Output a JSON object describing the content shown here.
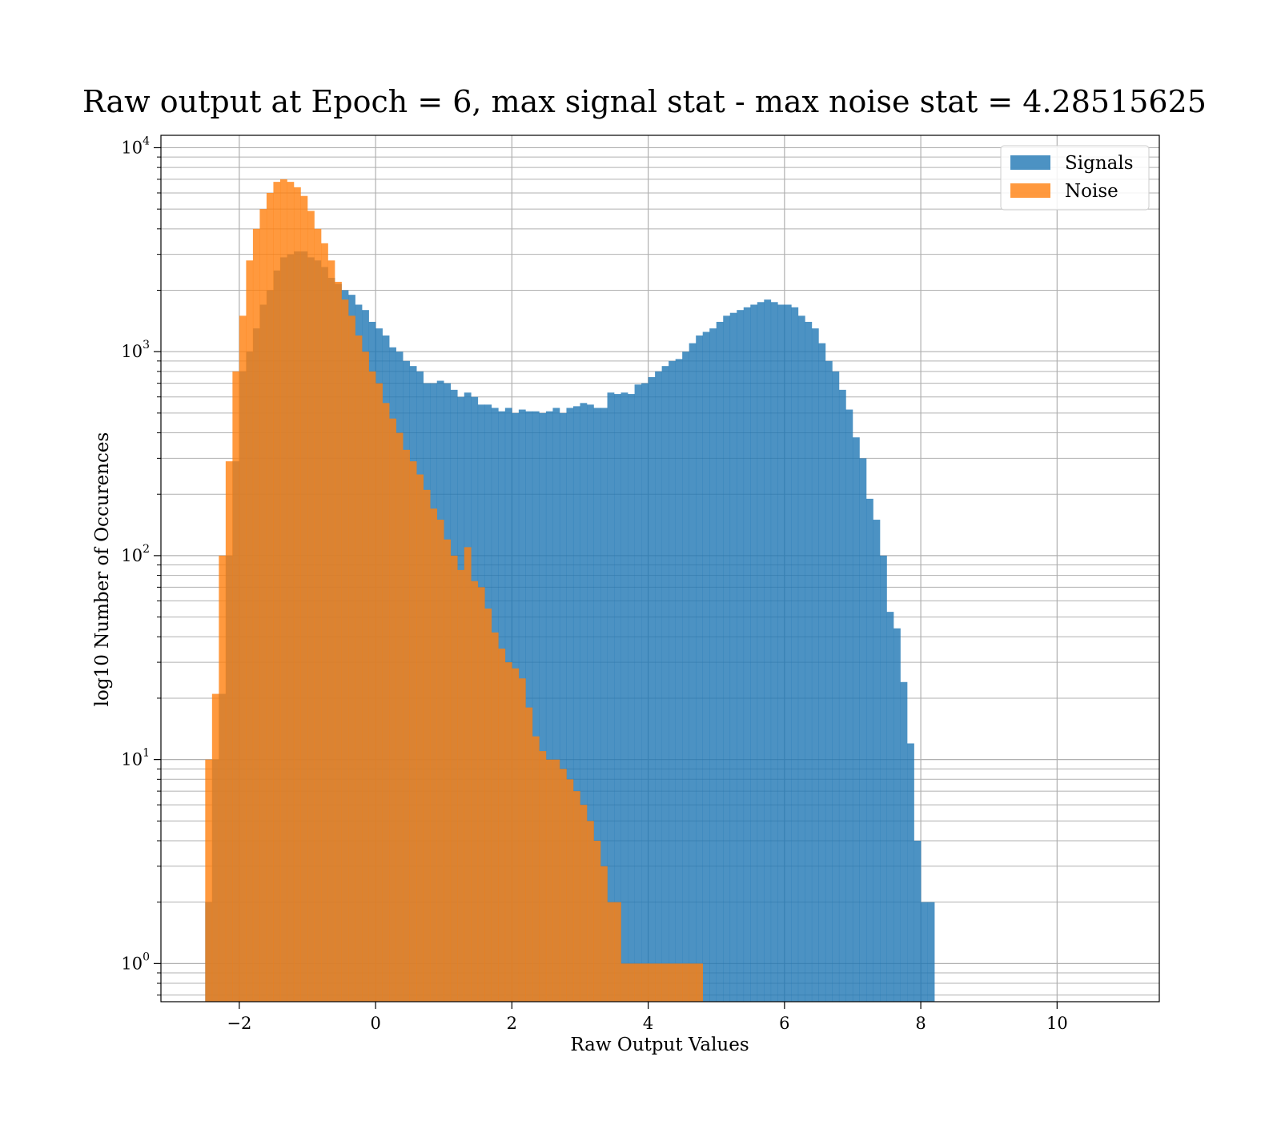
{
  "chart_data": {
    "type": "bar",
    "title": "Raw output at Epoch = 6, max signal stat - max noise stat = 4.28515625",
    "xlabel": "Raw Output Values",
    "ylabel": "log10 Number of Occurences",
    "x_scale": "linear",
    "y_scale": "log",
    "xlim": [
      -3.15,
      11.5
    ],
    "ylim": [
      0.65,
      11500
    ],
    "grid": true,
    "legend_position": "top-right",
    "x_ticks": [
      {
        "value": -2,
        "label": "−2"
      },
      {
        "value": 0,
        "label": "0"
      },
      {
        "value": 2,
        "label": "2"
      },
      {
        "value": 4,
        "label": "4"
      },
      {
        "value": 6,
        "label": "6"
      },
      {
        "value": 8,
        "label": "8"
      },
      {
        "value": 10,
        "label": "10"
      }
    ],
    "y_ticks": [
      {
        "value": 1,
        "base": "10",
        "exp": "0"
      },
      {
        "value": 10,
        "base": "10",
        "exp": "1"
      },
      {
        "value": 100,
        "base": "10",
        "exp": "2"
      },
      {
        "value": 1000,
        "base": "10",
        "exp": "3"
      },
      {
        "value": 10000,
        "base": "10",
        "exp": "4"
      }
    ],
    "series": [
      {
        "name": "Signals",
        "color": "#1f77b4",
        "bin_start": -2.5,
        "bin_width": 0.1,
        "values": [
          2,
          10,
          21,
          100,
          290,
          800,
          1000,
          1300,
          1700,
          2000,
          2500,
          2900,
          3000,
          3100,
          3100,
          2900,
          2800,
          2600,
          2300,
          2150,
          2000,
          1900,
          1700,
          1600,
          1400,
          1300,
          1200,
          1050,
          1000,
          900,
          850,
          800,
          700,
          700,
          720,
          700,
          650,
          600,
          630,
          600,
          550,
          550,
          530,
          510,
          530,
          500,
          520,
          510,
          510,
          500,
          510,
          530,
          500,
          530,
          540,
          560,
          550,
          530,
          530,
          630,
          620,
          630,
          620,
          690,
          700,
          750,
          800,
          850,
          900,
          920,
          1000,
          1100,
          1200,
          1250,
          1300,
          1400,
          1500,
          1550,
          1600,
          1650,
          1700,
          1750,
          1800,
          1750,
          1700,
          1700,
          1650,
          1500,
          1400,
          1300,
          1100,
          900,
          800,
          650,
          520,
          380,
          300,
          190,
          150,
          100,
          53,
          44,
          24,
          12,
          4,
          2,
          2
        ]
      },
      {
        "name": "Noise",
        "color": "#ff7f0e",
        "bin_start": -2.5,
        "bin_width": 0.1,
        "values": [
          10,
          21,
          100,
          290,
          800,
          1500,
          2800,
          4000,
          5000,
          6000,
          6800,
          7000,
          6800,
          6400,
          5800,
          4900,
          4000,
          3400,
          2800,
          2200,
          1800,
          1500,
          1200,
          1000,
          800,
          700,
          560,
          470,
          400,
          330,
          290,
          250,
          210,
          170,
          150,
          120,
          100,
          85,
          110,
          75,
          70,
          55,
          42,
          35,
          30,
          28,
          25,
          18,
          13,
          11,
          10,
          10,
          9,
          8,
          7,
          6,
          5,
          4,
          3,
          2,
          2,
          1,
          1,
          1,
          1,
          1,
          1,
          1,
          1,
          1,
          1,
          1,
          1
        ]
      }
    ]
  }
}
